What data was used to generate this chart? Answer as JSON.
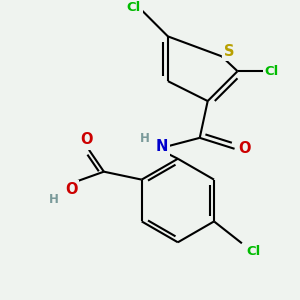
{
  "background_color": "#eff3ef",
  "atom_colors": {
    "S": "#b8a000",
    "Cl": "#00bb00",
    "N": "#0000cc",
    "O": "#cc0000",
    "H_label": "#7a9a9a",
    "C": "#000000"
  },
  "bond_color": "#000000",
  "bond_width": 1.5,
  "font_size_atoms": 9.5,
  "figsize": [
    3.0,
    3.0
  ],
  "dpi": 100
}
